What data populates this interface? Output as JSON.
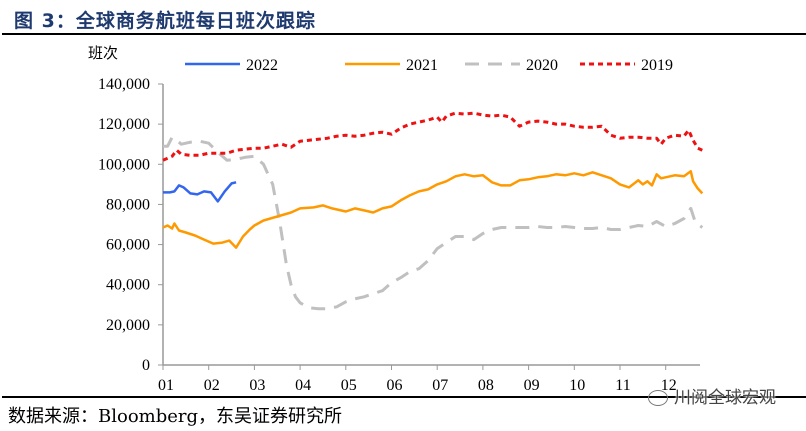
{
  "figure": {
    "title": "图 3：全球商务航班每日班次跟踪",
    "source": "数据来源：Bloomberg，东吴证券研究所",
    "watermark": "川阅全球宏观"
  },
  "chart_data": {
    "type": "line",
    "title": "图 3：全球商务航班每日班次跟踪",
    "ylabel": "班次",
    "xlabel": "",
    "ylim": [
      0,
      140000
    ],
    "xlim": [
      1,
      13
    ],
    "yticks": [
      0,
      20000,
      40000,
      60000,
      80000,
      100000,
      120000,
      140000
    ],
    "ytick_labels": [
      "0",
      "20,000",
      "40,000",
      "60,000",
      "80,000",
      "100,000",
      "120,000",
      "140,000"
    ],
    "xticks": [
      1,
      2,
      3,
      4,
      5,
      6,
      7,
      8,
      9,
      10,
      11,
      12
    ],
    "xtick_labels": [
      "01",
      "02",
      "03",
      "04",
      "05",
      "06",
      "07",
      "08",
      "09",
      "10",
      "11",
      "12"
    ],
    "grid": false,
    "legend_position": "top",
    "series": [
      {
        "name": "2022",
        "color": "#3366ee",
        "dash": "solid",
        "x": [
          1.0,
          1.15,
          1.25,
          1.35,
          1.45,
          1.6,
          1.75,
          1.9,
          2.05,
          2.2,
          2.35,
          2.5,
          2.6
        ],
        "y": [
          86000,
          86000,
          86500,
          89500,
          88500,
          85500,
          85000,
          86500,
          86000,
          81500,
          86500,
          90500,
          91000
        ]
      },
      {
        "name": "2021",
        "color": "#ff9900",
        "dash": "solid",
        "x": [
          1.0,
          1.1,
          1.2,
          1.25,
          1.35,
          1.5,
          1.7,
          1.9,
          2.1,
          2.3,
          2.45,
          2.6,
          2.75,
          2.9,
          3.0,
          3.2,
          3.5,
          3.8,
          4.0,
          4.3,
          4.5,
          4.7,
          5.0,
          5.2,
          5.4,
          5.6,
          5.8,
          6.0,
          6.2,
          6.4,
          6.6,
          6.8,
          7.0,
          7.2,
          7.4,
          7.6,
          7.8,
          8.0,
          8.2,
          8.4,
          8.6,
          8.8,
          9.0,
          9.2,
          9.4,
          9.6,
          9.8,
          10.0,
          10.2,
          10.4,
          10.6,
          10.8,
          11.0,
          11.2,
          11.4,
          11.5,
          11.6,
          11.7,
          11.8,
          11.9,
          12.0,
          12.2,
          12.4,
          12.55,
          12.6,
          12.7,
          12.8
        ],
        "y": [
          68500,
          69500,
          68000,
          70500,
          67000,
          66000,
          64500,
          62500,
          60500,
          61000,
          62000,
          58500,
          64000,
          67500,
          69500,
          72000,
          74000,
          76000,
          78000,
          78500,
          79500,
          78000,
          76500,
          78000,
          77000,
          76000,
          78000,
          79000,
          82000,
          84500,
          86500,
          87500,
          90000,
          91500,
          94000,
          95000,
          94000,
          94500,
          91000,
          89500,
          89500,
          92000,
          92500,
          93500,
          94000,
          95000,
          94500,
          95500,
          94500,
          96000,
          94500,
          93000,
          90000,
          88500,
          92000,
          90000,
          91500,
          89500,
          95000,
          93000,
          93500,
          94500,
          94000,
          96500,
          91500,
          88000,
          85500
        ]
      },
      {
        "name": "2020",
        "color": "#c0c0c0",
        "dash": "dashed",
        "x": [
          1.0,
          1.1,
          1.2,
          1.3,
          1.4,
          1.6,
          1.8,
          2.0,
          2.2,
          2.4,
          2.6,
          2.8,
          3.0,
          3.2,
          3.4,
          3.55,
          3.7,
          3.8,
          3.9,
          4.0,
          4.2,
          4.4,
          4.6,
          4.8,
          5.0,
          5.2,
          5.4,
          5.6,
          5.8,
          6.0,
          6.2,
          6.4,
          6.6,
          6.8,
          7.0,
          7.2,
          7.4,
          7.6,
          7.8,
          8.0,
          8.2,
          8.4,
          8.6,
          8.8,
          9.0,
          9.2,
          9.4,
          9.6,
          9.8,
          10.0,
          10.2,
          10.4,
          10.6,
          10.8,
          11.0,
          11.2,
          11.4,
          11.6,
          11.8,
          12.0,
          12.2,
          12.4,
          12.55,
          12.65,
          12.8
        ],
        "y": [
          109000,
          109000,
          113500,
          112000,
          110000,
          111000,
          111500,
          110500,
          106000,
          102000,
          102500,
          103500,
          104000,
          100000,
          90000,
          72000,
          50000,
          40000,
          34000,
          31000,
          28500,
          28000,
          28000,
          29000,
          31500,
          33000,
          34000,
          35500,
          37000,
          41000,
          43500,
          46500,
          48000,
          52000,
          58000,
          61000,
          64000,
          64000,
          62500,
          65500,
          67500,
          68500,
          68500,
          68500,
          68500,
          69000,
          68500,
          68500,
          69000,
          68500,
          68000,
          68000,
          68500,
          67500,
          67500,
          68500,
          69500,
          69000,
          71500,
          69000,
          70500,
          73000,
          78000,
          71000,
          68500
        ]
      },
      {
        "name": "2019",
        "color": "#ee1111",
        "dash": "dotted",
        "x": [
          1.0,
          1.1,
          1.2,
          1.3,
          1.4,
          1.6,
          1.8,
          2.0,
          2.2,
          2.4,
          2.6,
          2.8,
          3.0,
          3.2,
          3.4,
          3.6,
          3.8,
          4.0,
          4.2,
          4.4,
          4.6,
          4.8,
          5.0,
          5.2,
          5.4,
          5.6,
          5.8,
          6.0,
          6.2,
          6.4,
          6.6,
          6.8,
          7.0,
          7.1,
          7.2,
          7.4,
          7.6,
          7.8,
          8.0,
          8.2,
          8.4,
          8.6,
          8.8,
          9.0,
          9.2,
          9.4,
          9.6,
          9.8,
          10.0,
          10.2,
          10.4,
          10.6,
          10.8,
          11.0,
          11.2,
          11.4,
          11.6,
          11.8,
          11.9,
          12.0,
          12.2,
          12.4,
          12.5,
          12.6,
          12.7,
          12.8
        ],
        "y": [
          102000,
          103000,
          104000,
          107000,
          105000,
          104500,
          104500,
          105500,
          105500,
          105500,
          107000,
          107500,
          108000,
          108000,
          109000,
          110000,
          108500,
          111500,
          112000,
          112500,
          113000,
          114000,
          114500,
          114000,
          114500,
          115500,
          116000,
          115000,
          118000,
          120000,
          121000,
          122000,
          123500,
          121000,
          124000,
          125500,
          125000,
          125500,
          124500,
          124000,
          124500,
          123500,
          119000,
          121000,
          121500,
          121000,
          120000,
          120000,
          119000,
          118500,
          118500,
          119000,
          114500,
          113000,
          113500,
          113500,
          113000,
          113000,
          110000,
          113000,
          114500,
          114000,
          117000,
          112000,
          108000,
          107000
        ]
      }
    ]
  }
}
